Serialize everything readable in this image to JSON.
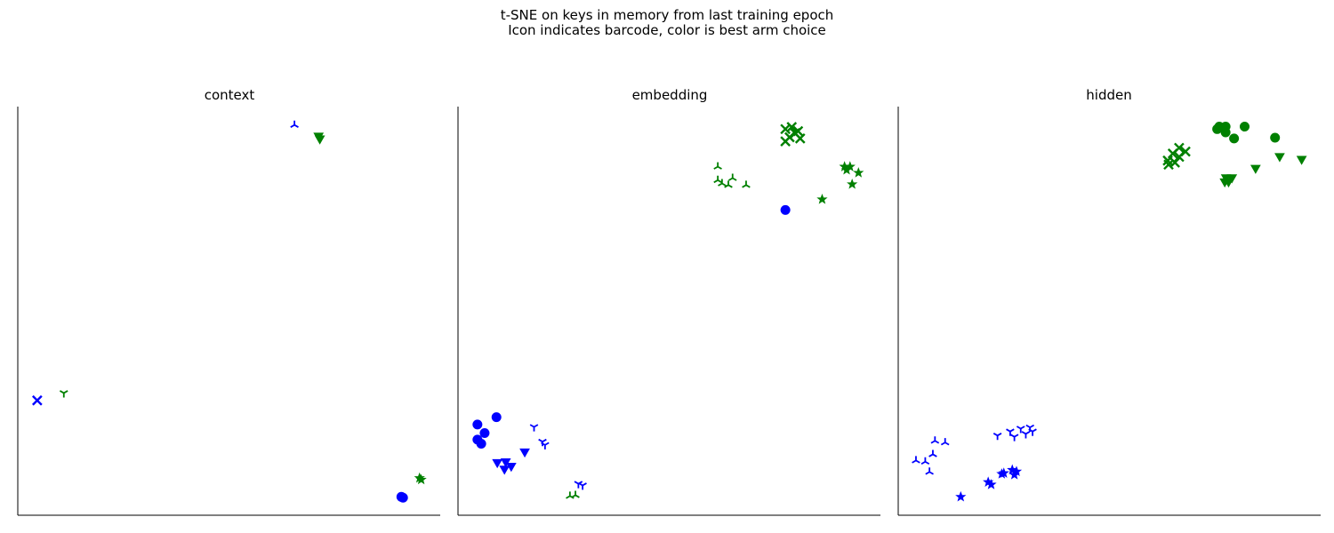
{
  "figure": {
    "title_line1": "t-SNE on keys in memory from last training epoch",
    "title_line2": "Icon indicates barcode, color is best arm choice"
  },
  "colors": {
    "arm_0": "#0000ff",
    "arm_1": "#008000"
  },
  "chart_data": [
    {
      "type": "scatter",
      "title": "context",
      "xlabel": "",
      "ylabel": "",
      "ticks": false,
      "grid": false,
      "xlim": [
        0,
        1
      ],
      "ylim": [
        0,
        1
      ],
      "points": [
        {
          "x": 0.655,
          "y": 0.955,
          "marker": "tri-up",
          "color": "#0000ff"
        },
        {
          "x": 0.712,
          "y": 0.927,
          "marker": "triangle-down",
          "color": "#008000"
        },
        {
          "x": 0.715,
          "y": 0.92,
          "marker": "triangle-down",
          "color": "#008000"
        },
        {
          "x": 0.046,
          "y": 0.281,
          "marker": "x",
          "color": "#0000ff"
        },
        {
          "x": 0.109,
          "y": 0.299,
          "marker": "tri-down",
          "color": "#008000"
        },
        {
          "x": 0.951,
          "y": 0.091,
          "marker": "star",
          "color": "#008000"
        },
        {
          "x": 0.955,
          "y": 0.087,
          "marker": "star",
          "color": "#008000"
        },
        {
          "x": 0.908,
          "y": 0.045,
          "marker": "circle",
          "color": "#0000ff"
        },
        {
          "x": 0.912,
          "y": 0.043,
          "marker": "circle",
          "color": "#0000ff"
        }
      ]
    },
    {
      "type": "scatter",
      "title": "embedding",
      "xlabel": "",
      "ylabel": "",
      "ticks": false,
      "grid": false,
      "xlim": [
        0,
        1
      ],
      "ylim": [
        0,
        1
      ],
      "points": [
        {
          "x": 0.775,
          "y": 0.945,
          "marker": "x",
          "color": "#008000"
        },
        {
          "x": 0.79,
          "y": 0.95,
          "marker": "x",
          "color": "#008000"
        },
        {
          "x": 0.805,
          "y": 0.94,
          "marker": "x",
          "color": "#008000"
        },
        {
          "x": 0.785,
          "y": 0.925,
          "marker": "x",
          "color": "#008000"
        },
        {
          "x": 0.81,
          "y": 0.922,
          "marker": "x",
          "color": "#008000"
        },
        {
          "x": 0.775,
          "y": 0.915,
          "marker": "x",
          "color": "#008000"
        },
        {
          "x": 0.798,
          "y": 0.935,
          "marker": "x",
          "color": "#008000"
        },
        {
          "x": 0.915,
          "y": 0.853,
          "marker": "star",
          "color": "#008000"
        },
        {
          "x": 0.928,
          "y": 0.853,
          "marker": "star",
          "color": "#008000"
        },
        {
          "x": 0.92,
          "y": 0.845,
          "marker": "star",
          "color": "#008000"
        },
        {
          "x": 0.948,
          "y": 0.838,
          "marker": "star",
          "color": "#008000"
        },
        {
          "x": 0.933,
          "y": 0.81,
          "marker": "star",
          "color": "#008000"
        },
        {
          "x": 0.862,
          "y": 0.773,
          "marker": "star",
          "color": "#008000"
        },
        {
          "x": 0.615,
          "y": 0.853,
          "marker": "tri-up",
          "color": "#008000"
        },
        {
          "x": 0.615,
          "y": 0.82,
          "marker": "tri-up",
          "color": "#008000"
        },
        {
          "x": 0.625,
          "y": 0.812,
          "marker": "tri-up",
          "color": "#008000"
        },
        {
          "x": 0.64,
          "y": 0.808,
          "marker": "tri-up",
          "color": "#008000"
        },
        {
          "x": 0.65,
          "y": 0.825,
          "marker": "tri-up",
          "color": "#008000"
        },
        {
          "x": 0.682,
          "y": 0.808,
          "marker": "tri-up",
          "color": "#008000"
        },
        {
          "x": 0.775,
          "y": 0.747,
          "marker": "circle",
          "color": "#0000ff"
        },
        {
          "x": 0.091,
          "y": 0.24,
          "marker": "circle",
          "color": "#0000ff"
        },
        {
          "x": 0.046,
          "y": 0.222,
          "marker": "circle",
          "color": "#0000ff"
        },
        {
          "x": 0.063,
          "y": 0.201,
          "marker": "circle",
          "color": "#0000ff"
        },
        {
          "x": 0.046,
          "y": 0.185,
          "marker": "circle",
          "color": "#0000ff"
        },
        {
          "x": 0.055,
          "y": 0.175,
          "marker": "circle",
          "color": "#0000ff"
        },
        {
          "x": 0.18,
          "y": 0.216,
          "marker": "tri-down",
          "color": "#0000ff"
        },
        {
          "x": 0.2,
          "y": 0.18,
          "marker": "tri-down",
          "color": "#0000ff"
        },
        {
          "x": 0.206,
          "y": 0.172,
          "marker": "tri-down",
          "color": "#0000ff"
        },
        {
          "x": 0.093,
          "y": 0.128,
          "marker": "triangle-down",
          "color": "#0000ff"
        },
        {
          "x": 0.113,
          "y": 0.13,
          "marker": "triangle-down",
          "color": "#0000ff"
        },
        {
          "x": 0.11,
          "y": 0.112,
          "marker": "triangle-down",
          "color": "#0000ff"
        },
        {
          "x": 0.126,
          "y": 0.119,
          "marker": "triangle-down",
          "color": "#0000ff"
        },
        {
          "x": 0.158,
          "y": 0.154,
          "marker": "triangle-down",
          "color": "#0000ff"
        },
        {
          "x": 0.285,
          "y": 0.077,
          "marker": "tri-down",
          "color": "#0000ff"
        },
        {
          "x": 0.295,
          "y": 0.073,
          "marker": "tri-down",
          "color": "#0000ff"
        },
        {
          "x": 0.265,
          "y": 0.047,
          "marker": "tri-up",
          "color": "#008000"
        },
        {
          "x": 0.278,
          "y": 0.049,
          "marker": "tri-up",
          "color": "#008000"
        }
      ]
    },
    {
      "type": "scatter",
      "title": "hidden",
      "xlabel": "",
      "ylabel": "",
      "ticks": false,
      "grid": false,
      "xlim": [
        0,
        1
      ],
      "ylim": [
        0,
        1
      ],
      "points": [
        {
          "x": 0.76,
          "y": 0.951,
          "marker": "circle",
          "color": "#008000"
        },
        {
          "x": 0.775,
          "y": 0.951,
          "marker": "circle",
          "color": "#008000"
        },
        {
          "x": 0.82,
          "y": 0.951,
          "marker": "circle",
          "color": "#008000"
        },
        {
          "x": 0.755,
          "y": 0.945,
          "marker": "circle",
          "color": "#008000"
        },
        {
          "x": 0.775,
          "y": 0.937,
          "marker": "circle",
          "color": "#008000"
        },
        {
          "x": 0.795,
          "y": 0.922,
          "marker": "circle",
          "color": "#008000"
        },
        {
          "x": 0.892,
          "y": 0.924,
          "marker": "circle",
          "color": "#008000"
        },
        {
          "x": 0.665,
          "y": 0.899,
          "marker": "x",
          "color": "#008000"
        },
        {
          "x": 0.68,
          "y": 0.89,
          "marker": "x",
          "color": "#008000"
        },
        {
          "x": 0.65,
          "y": 0.885,
          "marker": "x",
          "color": "#008000"
        },
        {
          "x": 0.665,
          "y": 0.877,
          "marker": "x",
          "color": "#008000"
        },
        {
          "x": 0.638,
          "y": 0.868,
          "marker": "x",
          "color": "#008000"
        },
        {
          "x": 0.655,
          "y": 0.863,
          "marker": "x",
          "color": "#008000"
        },
        {
          "x": 0.64,
          "y": 0.858,
          "marker": "x",
          "color": "#008000"
        },
        {
          "x": 0.903,
          "y": 0.877,
          "marker": "triangle-down",
          "color": "#008000"
        },
        {
          "x": 0.955,
          "y": 0.87,
          "marker": "triangle-down",
          "color": "#008000"
        },
        {
          "x": 0.846,
          "y": 0.848,
          "marker": "triangle-down",
          "color": "#008000"
        },
        {
          "x": 0.776,
          "y": 0.825,
          "marker": "triangle-down",
          "color": "#008000"
        },
        {
          "x": 0.79,
          "y": 0.825,
          "marker": "triangle-down",
          "color": "#008000"
        },
        {
          "x": 0.782,
          "y": 0.815,
          "marker": "triangle-down",
          "color": "#008000"
        },
        {
          "x": 0.773,
          "y": 0.815,
          "marker": "triangle-down",
          "color": "#008000"
        },
        {
          "x": 0.087,
          "y": 0.182,
          "marker": "tri-up",
          "color": "#0000ff"
        },
        {
          "x": 0.111,
          "y": 0.178,
          "marker": "tri-up",
          "color": "#0000ff"
        },
        {
          "x": 0.082,
          "y": 0.149,
          "marker": "tri-up",
          "color": "#0000ff"
        },
        {
          "x": 0.042,
          "y": 0.134,
          "marker": "tri-up",
          "color": "#0000ff"
        },
        {
          "x": 0.064,
          "y": 0.131,
          "marker": "tri-up",
          "color": "#0000ff"
        },
        {
          "x": 0.074,
          "y": 0.106,
          "marker": "tri-up",
          "color": "#0000ff"
        },
        {
          "x": 0.235,
          "y": 0.195,
          "marker": "tri-down",
          "color": "#0000ff"
        },
        {
          "x": 0.265,
          "y": 0.205,
          "marker": "tri-down",
          "color": "#0000ff"
        },
        {
          "x": 0.275,
          "y": 0.192,
          "marker": "tri-down",
          "color": "#0000ff"
        },
        {
          "x": 0.29,
          "y": 0.212,
          "marker": "tri-down",
          "color": "#0000ff"
        },
        {
          "x": 0.302,
          "y": 0.199,
          "marker": "tri-down",
          "color": "#0000ff"
        },
        {
          "x": 0.312,
          "y": 0.215,
          "marker": "tri-down",
          "color": "#0000ff"
        },
        {
          "x": 0.318,
          "y": 0.205,
          "marker": "tri-down",
          "color": "#0000ff"
        },
        {
          "x": 0.27,
          "y": 0.111,
          "marker": "star",
          "color": "#0000ff"
        },
        {
          "x": 0.28,
          "y": 0.107,
          "marker": "star",
          "color": "#0000ff"
        },
        {
          "x": 0.25,
          "y": 0.103,
          "marker": "star",
          "color": "#0000ff"
        },
        {
          "x": 0.245,
          "y": 0.101,
          "marker": "star",
          "color": "#0000ff"
        },
        {
          "x": 0.275,
          "y": 0.099,
          "marker": "star",
          "color": "#0000ff"
        },
        {
          "x": 0.213,
          "y": 0.081,
          "marker": "star",
          "color": "#0000ff"
        },
        {
          "x": 0.22,
          "y": 0.075,
          "marker": "star",
          "color": "#0000ff"
        },
        {
          "x": 0.148,
          "y": 0.045,
          "marker": "star",
          "color": "#0000ff"
        }
      ]
    }
  ]
}
